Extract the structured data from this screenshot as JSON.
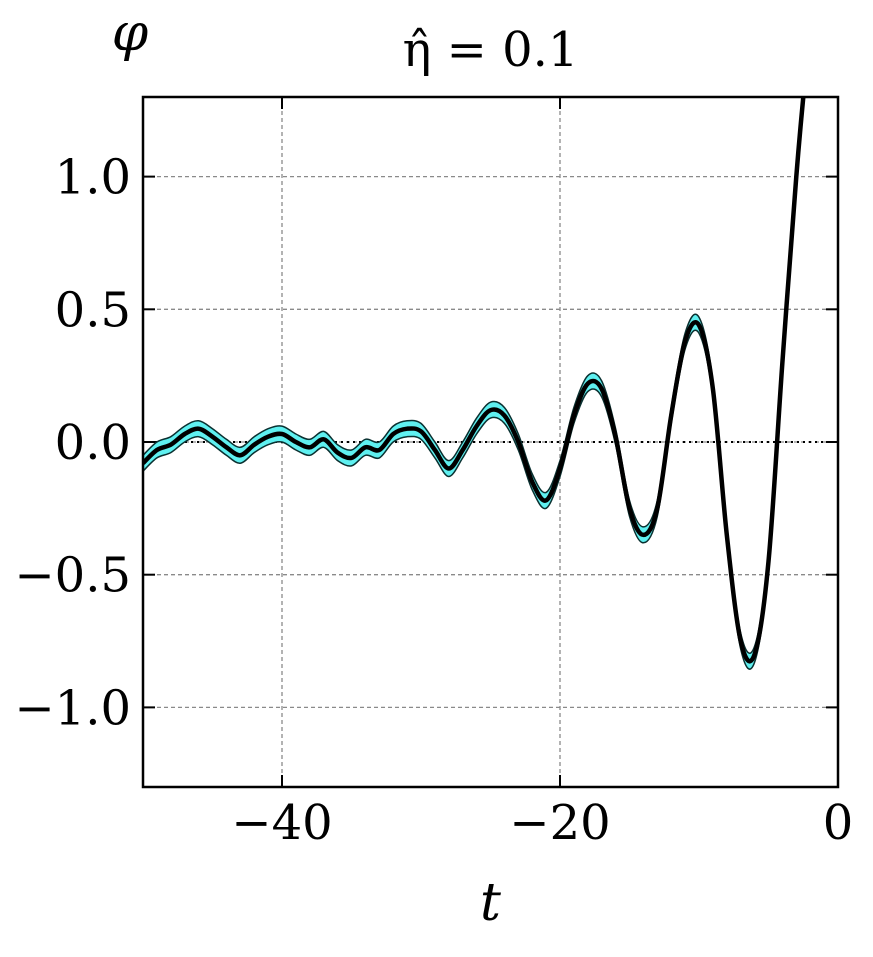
{
  "chart_data": {
    "type": "line",
    "title": "η̂ = 0.1",
    "xlabel": "t",
    "ylabel": "φ",
    "xlim": [
      -50,
      0
    ],
    "ylim": [
      -1.3,
      1.3
    ],
    "xticks": [
      -40,
      -20,
      0
    ],
    "xtick_labels": [
      "−40",
      "−20",
      "0"
    ],
    "yticks": [
      -1.0,
      -0.5,
      0.0,
      0.5,
      1.0
    ],
    "ytick_labels": [
      "−1.0",
      "−0.5",
      "0.0",
      "0.5",
      "1.0"
    ],
    "grid": true,
    "reference_line": {
      "y": 0.0,
      "style": "dotted"
    },
    "band_color": "#5ff0f0",
    "band_edge_color": "#0a3030",
    "line_color": "#000000",
    "band_halfwidth": 0.03,
    "series": [
      {
        "x": [
          -50,
          -49,
          -48,
          -47,
          -46,
          -45,
          -44,
          -43,
          -42,
          -41,
          -40,
          -39,
          -38,
          -37,
          -36,
          -35,
          -34,
          -33,
          -32,
          -31,
          -30,
          -29,
          -28,
          -27,
          -26,
          -25,
          -24,
          -23,
          -22,
          -21,
          -20,
          -19,
          -18,
          -17,
          -16,
          -15,
          -14,
          -13,
          -12,
          -11,
          -10,
          -9,
          -8,
          -7,
          -6,
          -5,
          -4,
          -3,
          -2.5
        ],
        "y": [
          -0.08,
          -0.03,
          -0.01,
          0.03,
          0.05,
          0.02,
          -0.02,
          -0.05,
          -0.01,
          0.02,
          0.03,
          0.0,
          -0.02,
          0.01,
          -0.04,
          -0.06,
          -0.02,
          -0.03,
          0.03,
          0.05,
          0.04,
          -0.03,
          -0.1,
          -0.03,
          0.06,
          0.12,
          0.1,
          0.0,
          -0.15,
          -0.22,
          -0.1,
          0.1,
          0.22,
          0.2,
          0.02,
          -0.25,
          -0.35,
          -0.25,
          0.1,
          0.38,
          0.44,
          0.2,
          -0.35,
          -0.75,
          -0.8,
          -0.45,
          0.3,
          1.0,
          1.3
        ]
      }
    ]
  }
}
